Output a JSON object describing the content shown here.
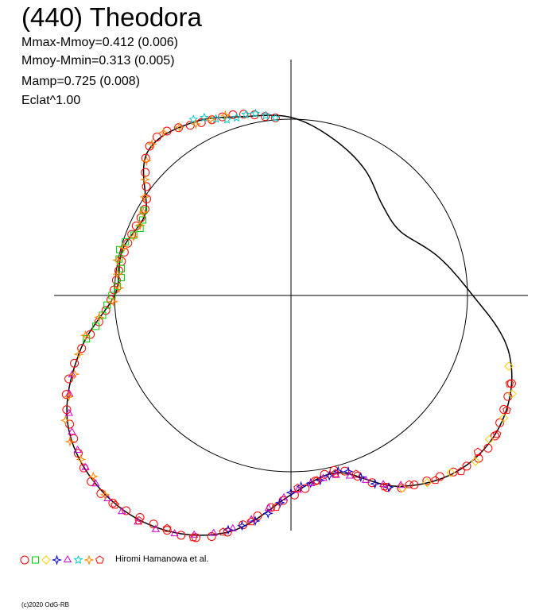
{
  "title": "(440) Theodora",
  "stats": {
    "mmax_mmoy": "Mmax-Mmoy=0.412 (0.006)",
    "mmoy_mmin": "Mmoy-Mmin=0.313 (0.005)",
    "mamp": "Mamp=0.725 (0.008)",
    "eclat": "Eclat^1.00"
  },
  "legend": {
    "text": "Hiromi Hamanowa et al.",
    "markers": [
      {
        "shape": "circle",
        "color": "#ff0000"
      },
      {
        "shape": "square",
        "color": "#00cc00"
      },
      {
        "shape": "diamond",
        "color": "#ffcc00"
      },
      {
        "shape": "star4",
        "color": "#0000cc"
      },
      {
        "shape": "triangle",
        "color": "#cc00cc"
      },
      {
        "shape": "star5",
        "color": "#00cccc"
      },
      {
        "shape": "star4",
        "color": "#ff8800"
      },
      {
        "shape": "pentagon",
        "color": "#ff0000"
      }
    ]
  },
  "copyright": "(c)2020 OdG-RB",
  "chart_data": {
    "type": "scatter",
    "description_of_axes": "polar lightcurve; angle = rotational phase, radius = scaled brightness",
    "reference_circle_radius": 1.0,
    "curve_polar": [
      {
        "angle_deg": 0,
        "r": 1.03
      },
      {
        "angle_deg": 15,
        "r": 0.86
      },
      {
        "angle_deg": 30,
        "r": 0.72
      },
      {
        "angle_deg": 45,
        "r": 0.73
      },
      {
        "angle_deg": 60,
        "r": 0.83
      },
      {
        "angle_deg": 75,
        "r": 0.92
      },
      {
        "angle_deg": 90,
        "r": 1.01
      },
      {
        "angle_deg": 105,
        "r": 1.05
      },
      {
        "angle_deg": 120,
        "r": 1.13
      },
      {
        "angle_deg": 135,
        "r": 1.15
      },
      {
        "angle_deg": 150,
        "r": 0.95
      },
      {
        "angle_deg": 165,
        "r": 0.99
      },
      {
        "angle_deg": 180,
        "r": 1.0
      },
      {
        "angle_deg": 195,
        "r": 1.24
      },
      {
        "angle_deg": 210,
        "r": 1.46
      },
      {
        "angle_deg": 225,
        "r": 1.54
      },
      {
        "angle_deg": 240,
        "r": 1.52
      },
      {
        "angle_deg": 255,
        "r": 1.39
      },
      {
        "angle_deg": 270,
        "r": 1.13
      },
      {
        "angle_deg": 285,
        "r": 1.04
      },
      {
        "angle_deg": 300,
        "r": 1.25
      },
      {
        "angle_deg": 315,
        "r": 1.38
      },
      {
        "angle_deg": 330,
        "r": 1.39
      },
      {
        "angle_deg": 345,
        "r": 1.28
      }
    ],
    "series": [
      {
        "shape": "circle",
        "color": "#ff0000",
        "start_deg": 95,
        "end_deg": 340,
        "step_deg": 3.2
      },
      {
        "shape": "square",
        "color": "#00cc00",
        "start_deg": 150,
        "end_deg": 192,
        "step_deg": 3.0
      },
      {
        "shape": "diamond",
        "color": "#ffcc00",
        "start_deg": 300,
        "end_deg": 345,
        "step_deg": 6.0
      },
      {
        "shape": "star4",
        "color": "#0000cc",
        "start_deg": 255,
        "end_deg": 298,
        "step_deg": 3.0
      },
      {
        "shape": "triangle",
        "color": "#cc00cc",
        "start_deg": 200,
        "end_deg": 300,
        "step_deg": 4.0
      },
      {
        "shape": "star5",
        "color": "#00cccc",
        "start_deg": 95,
        "end_deg": 120,
        "step_deg": 3.0
      },
      {
        "shape": "star4",
        "color": "#ff8800",
        "start_deg": 110,
        "end_deg": 230,
        "step_deg": 4.5
      },
      {
        "shape": "pentagon",
        "color": "#ff0000",
        "start_deg": 230,
        "end_deg": 338,
        "step_deg": 6.0
      }
    ],
    "grid": false
  }
}
